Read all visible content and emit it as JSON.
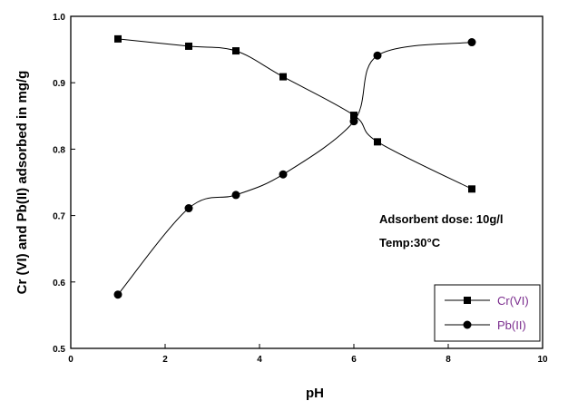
{
  "chart_data": {
    "type": "line",
    "xlabel": "pH",
    "ylabel": "Cr (VI) and Pb(II) adsorbed in mg/g",
    "xlim": [
      0,
      10
    ],
    "ylim": [
      0.5,
      1.0
    ],
    "x_ticks": [
      "0",
      "2",
      "4",
      "6",
      "8",
      "10"
    ],
    "y_ticks": [
      "0.5",
      "0.6",
      "0.7",
      "0.8",
      "0.9",
      "1.0"
    ],
    "series": [
      {
        "name": "Cr(VI)",
        "marker": "square",
        "color": "#000000",
        "legend_text_color": "#7b2d8e",
        "x": [
          1,
          2.5,
          3.5,
          4.5,
          6,
          6.5,
          8.5
        ],
        "y": [
          0.966,
          0.955,
          0.948,
          0.909,
          0.851,
          0.811,
          0.74
        ]
      },
      {
        "name": "Pb(II)",
        "marker": "circle",
        "color": "#000000",
        "legend_text_color": "#7b2d8e",
        "x": [
          1,
          2.5,
          3.5,
          4.5,
          6,
          6.5,
          8.5
        ],
        "y": [
          0.581,
          0.711,
          0.731,
          0.762,
          0.842,
          0.941,
          0.961
        ]
      }
    ],
    "annotations": [
      "Adsorbent dose: 10g/l",
      "Temp:30°C"
    ],
    "legend_position": "bottom-right",
    "grid": false
  }
}
